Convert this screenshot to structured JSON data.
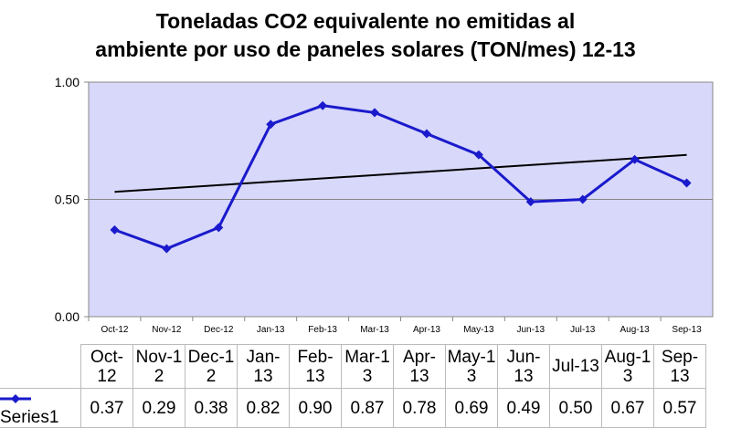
{
  "chart_data": {
    "type": "line",
    "title": "Toneladas CO2 equivalente no emitidas al ambiente por uso de paneles solares (TON/mes) 12-13",
    "title_lines": [
      "Toneladas CO2 equivalente no emitidas al",
      "ambiente por uso de paneles solares (TON/mes) 12-13"
    ],
    "categories": [
      "Oct-12",
      "Nov-12",
      "Dec-12",
      "Jan-13",
      "Feb-13",
      "Mar-13",
      "Apr-13",
      "May-13",
      "Jun-13",
      "Jul-13",
      "Aug-13",
      "Sep-13"
    ],
    "table_headers": [
      "Oct-12",
      "Nov-1 2",
      "Dec-1 2",
      "Jan-13",
      "Feb-13",
      "Mar-1 3",
      "Apr-13",
      "May-1 3",
      "Jun-13",
      "Jul-13",
      "Aug-1 3",
      "Sep-13"
    ],
    "series": [
      {
        "name": "Series1",
        "values": [
          0.37,
          0.29,
          0.38,
          0.82,
          0.9,
          0.87,
          0.78,
          0.69,
          0.49,
          0.5,
          0.67,
          0.57
        ],
        "value_labels": [
          "0.37",
          "0.29",
          "0.38",
          "0.82",
          "0.90",
          "0.87",
          "0.78",
          "0.69",
          "0.49",
          "0.50",
          "0.67",
          "0.57"
        ],
        "color": "#1a1acc"
      }
    ],
    "trendline": {
      "type": "linear",
      "color": "#000000"
    },
    "ylim": [
      0,
      1
    ],
    "yticks": [
      "0.00",
      "0.50",
      "1.00"
    ],
    "grid": true,
    "plot_background": "#d8d8fa",
    "legend": "data-table"
  }
}
